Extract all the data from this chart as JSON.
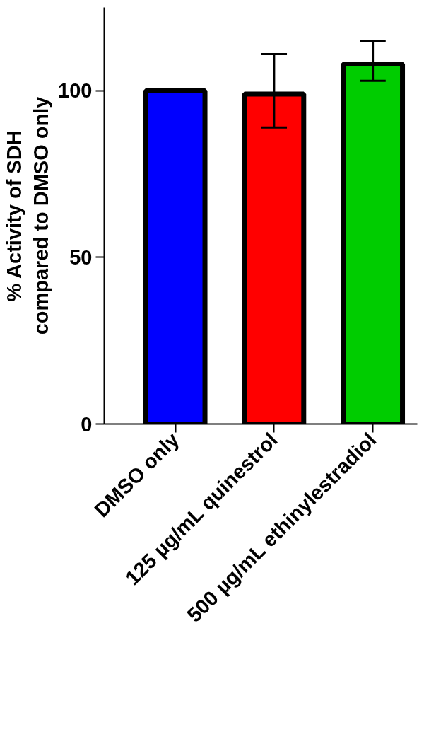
{
  "chart_data": {
    "type": "bar",
    "ylabel": "% Activity of SDH\ncompared to DMSO only",
    "categories": [
      "DMSO only",
      "125 µg/mL quinestrol",
      "500 µg/mL ethinylestradiol"
    ],
    "values": [
      100,
      99,
      108
    ],
    "colors": [
      "#0000ff",
      "#ff0000",
      "#00cc00"
    ],
    "errors": [
      null,
      [
        89,
        111
      ],
      [
        103,
        115
      ]
    ],
    "ylim": [
      0,
      125
    ],
    "yticks": [
      0,
      50,
      100
    ],
    "grid": false
  }
}
